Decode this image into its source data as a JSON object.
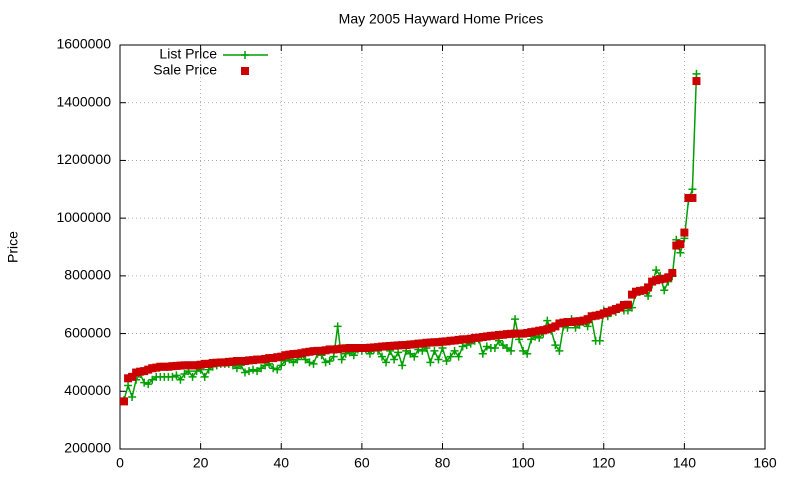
{
  "chart_data": {
    "type": "scatter",
    "title": "May 2005 Hayward Home Prices",
    "y_label": "Price",
    "x": [
      1,
      2,
      3,
      4,
      5,
      6,
      7,
      8,
      9,
      10,
      11,
      12,
      13,
      14,
      15,
      16,
      17,
      18,
      19,
      20,
      21,
      22,
      23,
      24,
      25,
      26,
      27,
      28,
      29,
      30,
      31,
      32,
      33,
      34,
      35,
      36,
      37,
      38,
      39,
      40,
      41,
      42,
      43,
      44,
      45,
      46,
      47,
      48,
      49,
      50,
      51,
      52,
      53,
      54,
      55,
      56,
      57,
      58,
      59,
      60,
      61,
      62,
      63,
      64,
      65,
      66,
      67,
      68,
      69,
      70,
      71,
      72,
      73,
      74,
      75,
      76,
      77,
      78,
      79,
      80,
      81,
      82,
      83,
      84,
      85,
      86,
      87,
      88,
      89,
      90,
      91,
      92,
      93,
      94,
      95,
      96,
      97,
      98,
      99,
      100,
      101,
      102,
      103,
      104,
      105,
      106,
      107,
      108,
      109,
      110,
      111,
      112,
      113,
      114,
      115,
      116,
      117,
      118,
      119,
      120,
      121,
      122,
      123,
      124,
      125,
      126,
      127,
      128,
      129,
      130,
      131,
      132,
      133,
      134,
      135,
      136,
      137,
      138,
      139,
      140,
      141,
      142,
      143
    ],
    "series": [
      {
        "name": "List Price",
        "color": "#00a000",
        "style": "linespoints",
        "values": [
          370000,
          420000,
          380000,
          440000,
          460000,
          430000,
          425000,
          440000,
          450000,
          450000,
          450000,
          450000,
          450000,
          455000,
          440000,
          460000,
          470000,
          450000,
          470000,
          475000,
          450000,
          475000,
          485000,
          490000,
          495000,
          495000,
          495000,
          490000,
          480000,
          490000,
          465000,
          470000,
          475000,
          470000,
          480000,
          490000,
          495000,
          480000,
          475000,
          490000,
          505000,
          510000,
          500000,
          510000,
          525000,
          510000,
          500000,
          495000,
          530000,
          525000,
          500000,
          505000,
          520000,
          625000,
          510000,
          530000,
          535000,
          525000,
          545000,
          540000,
          545000,
          530000,
          545000,
          540000,
          520000,
          500000,
          540000,
          510000,
          535000,
          490000,
          540000,
          530000,
          520000,
          545000,
          540000,
          550000,
          500000,
          540000,
          510000,
          550000,
          505000,
          520000,
          540000,
          520000,
          555000,
          560000,
          565000,
          575000,
          580000,
          530000,
          555000,
          550000,
          550000,
          575000,
          560000,
          550000,
          540000,
          650000,
          580000,
          540000,
          530000,
          580000,
          590000,
          585000,
          600000,
          645000,
          610000,
          560000,
          540000,
          625000,
          620000,
          650000,
          620000,
          630000,
          640000,
          625000,
          650000,
          575000,
          575000,
          680000,
          660000,
          680000,
          675000,
          690000,
          680000,
          680000,
          690000,
          740000,
          745000,
          750000,
          730000,
          770000,
          820000,
          800000,
          750000,
          780000,
          800000,
          925000,
          880000,
          930000,
          1060000,
          1100000,
          1500000
        ]
      },
      {
        "name": "Sale Price",
        "color": "#cc0000",
        "style": "points",
        "values": [
          365000,
          445000,
          450000,
          465000,
          468000,
          470000,
          475000,
          480000,
          482000,
          485000,
          485000,
          485000,
          487000,
          488000,
          489000,
          490000,
          490000,
          490000,
          490000,
          492000,
          495000,
          495000,
          498000,
          499000,
          500000,
          500000,
          502000,
          503000,
          505000,
          505000,
          505000,
          507000,
          508000,
          510000,
          510000,
          512000,
          515000,
          515000,
          518000,
          520000,
          525000,
          527000,
          529000,
          530000,
          532000,
          535000,
          537000,
          539000,
          540000,
          540000,
          542000,
          545000,
          545000,
          546000,
          548000,
          549000,
          550000,
          550000,
          550000,
          550000,
          550000,
          551000,
          552000,
          553000,
          555000,
          556000,
          557000,
          558000,
          559000,
          560000,
          560000,
          562000,
          563000,
          565000,
          566000,
          568000,
          569000,
          570000,
          570000,
          572000,
          573000,
          575000,
          576000,
          578000,
          580000,
          580000,
          582000,
          585000,
          586000,
          588000,
          590000,
          592000,
          593000,
          595000,
          596000,
          598000,
          599000,
          600000,
          600000,
          600000,
          602000,
          605000,
          607000,
          610000,
          612000,
          615000,
          620000,
          625000,
          635000,
          638000,
          640000,
          640000,
          642000,
          643000,
          645000,
          650000,
          660000,
          662000,
          665000,
          670000,
          675000,
          680000,
          685000,
          690000,
          699000,
          700000,
          735000,
          745000,
          748000,
          750000,
          760000,
          780000,
          785000,
          788000,
          790000,
          795000,
          810000,
          905000,
          910000,
          950000,
          1070000,
          1070000,
          1475000
        ]
      }
    ],
    "xlim": [
      0,
      160
    ],
    "xticks": [
      0,
      20,
      40,
      60,
      80,
      100,
      120,
      140,
      160
    ],
    "ylim": [
      200000,
      1600000
    ],
    "yticks": [
      200000,
      400000,
      600000,
      800000,
      1000000,
      1200000,
      1400000,
      1600000
    ],
    "grid": true,
    "legend": "top-left"
  }
}
